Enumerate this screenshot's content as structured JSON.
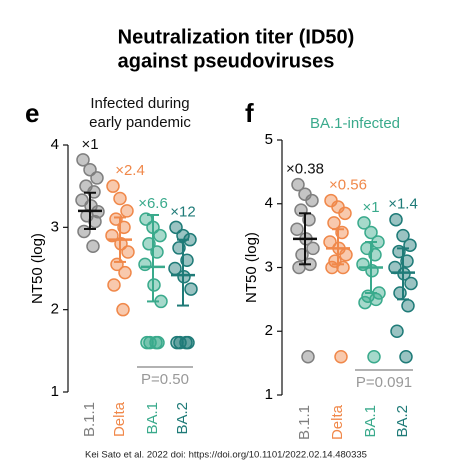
{
  "title": [
    "Neutralization titer (ID50)",
    "against pseudoviruses"
  ],
  "source": "Kei Sato et al. 2022 doi: https://doi.org/10.1101/2022.02.14.480335",
  "chart_data": [
    {
      "type": "strip",
      "panel": "e",
      "subtitle": [
        "Infected during",
        "early pandemic"
      ],
      "subtitle_color": "#111111",
      "ylabel": "NT50 (log)",
      "ylim": [
        1,
        4
      ],
      "yticks": [
        1,
        2,
        3,
        4
      ],
      "p_value": "P=0.50",
      "groups": [
        {
          "label": "B.1.1",
          "color": "#7f7f7f",
          "values": [
            3.82,
            3.7,
            3.6,
            3.5,
            3.43,
            3.33,
            3.26,
            3.19,
            3.14,
            3.07,
            2.95,
            2.77
          ],
          "mean": 3.2,
          "ci": [
            2.98,
            3.42
          ],
          "fold": "×1"
        },
        {
          "label": "Delta",
          "color": "#f0884a",
          "values": [
            3.5,
            3.35,
            3.2,
            3.1,
            3.0,
            2.9,
            2.8,
            2.7,
            2.55,
            2.45,
            2.3,
            2.0
          ],
          "mean": 2.85,
          "ci": [
            2.58,
            3.12
          ],
          "fold": "×2.4"
        },
        {
          "label": "BA.1",
          "color": "#3aaa8c",
          "values": [
            3.1,
            3.0,
            2.9,
            2.8,
            2.7,
            2.55,
            2.3,
            2.1,
            1.6,
            1.6,
            1.6,
            1.6
          ],
          "mean": 2.52,
          "ci": [
            2.1,
            3.15
          ],
          "fold": "×6.6"
        },
        {
          "label": "BA.2",
          "color": "#1f7b78",
          "values": [
            3.0,
            2.9,
            2.85,
            2.75,
            2.6,
            2.5,
            2.4,
            2.25,
            1.6,
            1.6,
            1.6,
            1.6
          ],
          "mean": 2.42,
          "ci": [
            2.05,
            2.85
          ],
          "fold": "×12"
        }
      ]
    },
    {
      "type": "strip",
      "panel": "f",
      "subtitle": [
        "BA.1-infected"
      ],
      "subtitle_color": "#3aaa8c",
      "ylabel": "NT50 (log)",
      "ylim": [
        1,
        5
      ],
      "yticks": [
        1,
        2,
        3,
        4,
        5
      ],
      "p_value": "P=0.091",
      "groups": [
        {
          "label": "B.1.1",
          "color": "#7f7f7f",
          "values": [
            4.3,
            4.15,
            4.05,
            3.9,
            3.75,
            3.6,
            3.45,
            3.3,
            3.2,
            3.05,
            3.0,
            1.6
          ],
          "mean": 3.45,
          "ci": [
            3.05,
            3.85
          ],
          "fold": "×0.38"
        },
        {
          "label": "Delta",
          "color": "#f0884a",
          "values": [
            4.05,
            3.95,
            3.85,
            3.7,
            3.55,
            3.4,
            3.3,
            3.2,
            3.1,
            3.0,
            3.0,
            1.6
          ],
          "mean": 3.3,
          "ci": [
            3.05,
            3.6
          ],
          "fold": "×0.56"
        },
        {
          "label": "BA.1",
          "color": "#3aaa8c",
          "values": [
            3.7,
            3.55,
            3.4,
            3.3,
            3.2,
            3.05,
            2.95,
            2.6,
            2.55,
            2.5,
            2.45,
            1.6
          ],
          "mean": 3.0,
          "ci": [
            2.6,
            3.4
          ],
          "fold": "×1"
        },
        {
          "label": "BA.2",
          "color": "#1f7b78",
          "values": [
            3.75,
            3.5,
            3.35,
            3.25,
            3.1,
            3.0,
            2.9,
            2.75,
            2.6,
            2.4,
            2.0,
            1.6
          ],
          "mean": 2.92,
          "ci": [
            2.5,
            3.3
          ],
          "fold": "×1.4"
        }
      ]
    }
  ]
}
